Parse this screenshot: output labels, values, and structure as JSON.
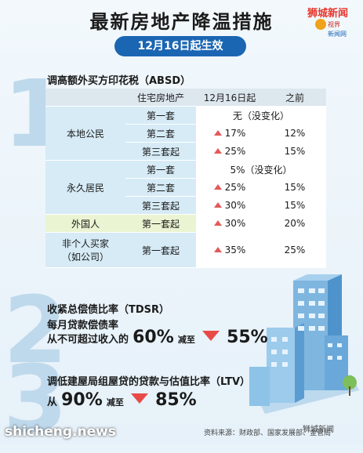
{
  "header": {
    "title": "最新房地产降温措施",
    "subtitle": "12月16日起生效",
    "logo_line1": "狮城新闻",
    "logo_line2": "视界",
    "logo_line3": "新闻网"
  },
  "section1": {
    "number": "1",
    "title": "调高额外买方印花税（ABSD）",
    "headers": [
      "",
      "住宅房地产",
      "12月16日起",
      "之前"
    ],
    "local": {
      "label": "本地公民",
      "r1": "第一套",
      "r1_val": "无（没变化）",
      "r2": "第二套",
      "r2_new": "17%",
      "r2_old": "12%",
      "r3": "第三套起",
      "r3_new": "25%",
      "r3_old": "15%"
    },
    "pr": {
      "label": "永久居民",
      "r1": "第一套",
      "r1_val": "5%（没变化）",
      "r2": "第二套",
      "r2_new": "25%",
      "r2_old": "15%",
      "r3": "第三套起",
      "r3_new": "30%",
      "r3_old": "15%"
    },
    "foreigner": {
      "label": "外国人",
      "r1": "第一套起",
      "new": "30%",
      "old": "20%"
    },
    "entity": {
      "label1": "非个人买家",
      "label2": "（如公司）",
      "r1": "第一套起",
      "new": "35%",
      "old": "25%"
    }
  },
  "section2": {
    "number": "2",
    "title": "收紧总偿债比率（TDSR）",
    "sub": "每月贷款偿债率",
    "from_text": "从不可超过收入的",
    "from_val": "60%",
    "reduce": "减至",
    "to_val": "55%"
  },
  "section3": {
    "number": "3",
    "title": "调低建屋局组屋贷的贷款与估值比率（LTV）",
    "from_text": "从",
    "from_val": "90%",
    "reduce": "减至",
    "to_val": "85%"
  },
  "footer": {
    "source": "资料来源：财政部、国家发展部、金管局",
    "watermark": "shicheng.news",
    "wechat": "狮城新闻"
  },
  "colors": {
    "accent_blue": "#1b66b3",
    "arrow_red": "#e35a5a",
    "table_blue": "#d6ebf6",
    "table_green": "#eaf4d2"
  }
}
